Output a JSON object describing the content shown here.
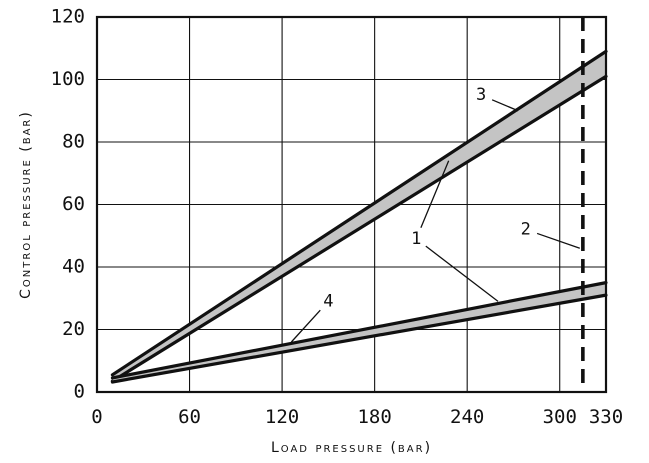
{
  "chart_data": {
    "type": "line",
    "xlabel": "Load pressure (bar)",
    "ylabel": "Control pressure (bar)",
    "xlim": [
      0,
      330
    ],
    "ylim": [
      0,
      120
    ],
    "x_ticks": [
      "0",
      "60",
      "120",
      "180",
      "240",
      "300",
      "330"
    ],
    "y_ticks": [
      "0",
      "20",
      "40",
      "60",
      "80",
      "100",
      "120"
    ],
    "x_tick_values": [
      0,
      60,
      120,
      180,
      240,
      300,
      330
    ],
    "y_tick_values": [
      0,
      20,
      40,
      60,
      80,
      100,
      120
    ],
    "x_grid": [
      0,
      60,
      120,
      180,
      240,
      300,
      330
    ],
    "y_grid": [
      0,
      20,
      40,
      60,
      80,
      100,
      120
    ],
    "grid": true,
    "bands": [
      {
        "upper": [
          [
            10,
            5.5
          ],
          [
            330,
            109
          ]
        ],
        "lower": [
          [
            10,
            3.5
          ],
          [
            330,
            101
          ]
        ],
        "fill": "#c4c4c4"
      },
      {
        "upper": [
          [
            10,
            4.5
          ],
          [
            330,
            35
          ]
        ],
        "lower": [
          [
            10,
            3.2
          ],
          [
            330,
            31
          ]
        ],
        "fill": "#c4c4c4"
      }
    ],
    "reference_line": {
      "x": 315,
      "style": "dashed"
    },
    "callouts": [
      {
        "label": "1",
        "text_at": [
          207,
          49
        ],
        "targets": [
          [
            228,
            74
          ],
          [
            260,
            29
          ]
        ]
      },
      {
        "label": "2",
        "text_at": [
          278,
          52
        ],
        "targets": [
          [
            313,
            46
          ]
        ]
      },
      {
        "label": "3",
        "text_at": [
          249,
          95
        ],
        "targets": [
          [
            273,
            90
          ]
        ]
      },
      {
        "label": "4",
        "text_at": [
          150,
          29
        ],
        "targets": [
          [
            126,
            16
          ]
        ]
      }
    ]
  }
}
